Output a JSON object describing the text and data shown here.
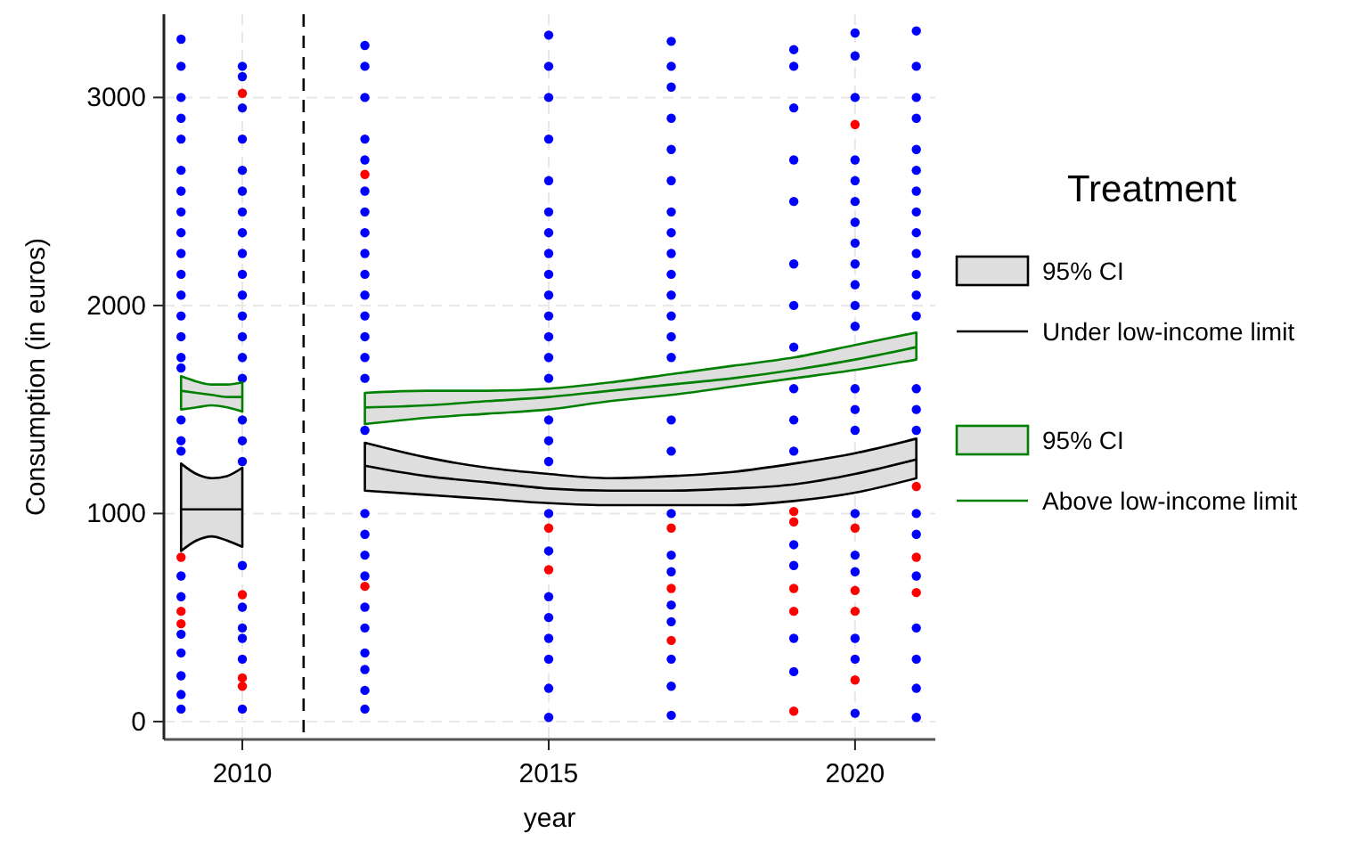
{
  "chart_data": {
    "type": "scatter",
    "xlabel": "year",
    "ylabel": "Consumption (in euros)",
    "legend_title": "Treatment",
    "legend": "right",
    "grid": true,
    "marker": "circle",
    "xlim": [
      2008.72,
      2021.31
    ],
    "ylim": [
      -86,
      3400
    ],
    "xticks": [
      2010,
      2015,
      2020
    ],
    "yticks": [
      0,
      1000,
      2000,
      3000
    ],
    "annotations": [
      "95% CI",
      "95% CI"
    ],
    "ref_lines": [
      {
        "axis": "x",
        "value": 2011,
        "color": "#000000",
        "line_style": "dashed"
      }
    ],
    "series": [
      {
        "color": "#0000ff",
        "x": [
          2009,
          2009,
          2009,
          2009,
          2009,
          2009,
          2009,
          2009,
          2009,
          2009,
          2009,
          2009,
          2009,
          2009,
          2009,
          2009,
          2009,
          2009,
          2009,
          2009,
          2009,
          2009,
          2009,
          2009,
          2009,
          2009,
          2010,
          2010,
          2010,
          2010,
          2010,
          2010,
          2010,
          2010,
          2010,
          2010,
          2010,
          2010,
          2010,
          2010,
          2010,
          2010,
          2010,
          2010,
          2010,
          2010,
          2010,
          2010,
          2010,
          2010,
          2012,
          2012,
          2012,
          2012,
          2012,
          2012,
          2012,
          2012,
          2012,
          2012,
          2012,
          2012,
          2012,
          2012,
          2012,
          2012,
          2012,
          2012,
          2012,
          2012,
          2012,
          2012,
          2012,
          2012,
          2012,
          2012,
          2015,
          2015,
          2015,
          2015,
          2015,
          2015,
          2015,
          2015,
          2015,
          2015,
          2015,
          2015,
          2015,
          2015,
          2015,
          2015,
          2015,
          2015,
          2015,
          2015,
          2015,
          2015,
          2015,
          2015,
          2015,
          2017,
          2017,
          2017,
          2017,
          2017,
          2017,
          2017,
          2017,
          2017,
          2017,
          2017,
          2017,
          2017,
          2017,
          2017,
          2017,
          2017,
          2017,
          2017,
          2017,
          2017,
          2017,
          2017,
          2017,
          2019,
          2019,
          2019,
          2019,
          2019,
          2019,
          2019,
          2019,
          2019,
          2019,
          2019,
          2019,
          2019,
          2019,
          2019,
          2020,
          2020,
          2020,
          2020,
          2020,
          2020,
          2020,
          2020,
          2020,
          2020,
          2020,
          2020,
          2020,
          2020,
          2020,
          2020,
          2020,
          2020,
          2020,
          2020,
          2020,
          2021,
          2021,
          2021,
          2021,
          2021,
          2021,
          2021,
          2021,
          2021,
          2021,
          2021,
          2021,
          2021,
          2021,
          2021,
          2021,
          2021,
          2021,
          2021,
          2021,
          2021,
          2021,
          2021
        ],
        "values": [
          60,
          130,
          220,
          330,
          420,
          600,
          700,
          1300,
          1350,
          1450,
          1700,
          1750,
          1850,
          1950,
          2050,
          2150,
          2250,
          2350,
          2450,
          2550,
          2650,
          2800,
          2900,
          3000,
          3150,
          3280,
          60,
          300,
          400,
          450,
          550,
          750,
          1250,
          1350,
          1450,
          1650,
          1750,
          1850,
          1950,
          2050,
          2150,
          2250,
          2350,
          2450,
          2550,
          2650,
          2800,
          2950,
          3100,
          3150,
          60,
          150,
          250,
          330,
          450,
          550,
          700,
          800,
          900,
          1000,
          1400,
          1650,
          1750,
          1850,
          1950,
          2050,
          2150,
          2250,
          2350,
          2450,
          2550,
          2700,
          2800,
          3000,
          3150,
          3250,
          20,
          160,
          300,
          400,
          500,
          600,
          820,
          1000,
          1250,
          1350,
          1450,
          1650,
          1750,
          1850,
          1950,
          2050,
          2150,
          2250,
          2350,
          2450,
          2600,
          2800,
          3000,
          3150,
          3300,
          30,
          170,
          300,
          480,
          560,
          720,
          800,
          1000,
          1300,
          1450,
          1750,
          1850,
          1950,
          2050,
          2150,
          2250,
          2350,
          2450,
          2600,
          2750,
          2900,
          3050,
          3150,
          3270,
          240,
          400,
          750,
          850,
          1300,
          1450,
          1600,
          1800,
          2000,
          2200,
          2500,
          2700,
          2950,
          3150,
          3230,
          40,
          300,
          400,
          720,
          800,
          1000,
          1400,
          1500,
          1600,
          1900,
          2000,
          2100,
          2200,
          2300,
          2400,
          2500,
          2600,
          2700,
          3000,
          3200,
          3310,
          20,
          160,
          300,
          450,
          700,
          900,
          1000,
          1400,
          1500,
          1600,
          1950,
          2050,
          2150,
          2250,
          2350,
          2450,
          2550,
          2650,
          2750,
          2900,
          3000,
          3150,
          3320
        ]
      },
      {
        "color": "#ff0000",
        "x": [
          2009,
          2009,
          2009,
          2010,
          2010,
          2010,
          2010,
          2012,
          2012,
          2015,
          2015,
          2017,
          2017,
          2017,
          2019,
          2019,
          2019,
          2019,
          2019,
          2020,
          2020,
          2020,
          2020,
          2020,
          2021,
          2021,
          2021
        ],
        "values": [
          530,
          470,
          790,
          210,
          170,
          610,
          3020,
          650,
          2630,
          730,
          930,
          640,
          930,
          390,
          50,
          530,
          640,
          960,
          1010,
          200,
          530,
          630,
          930,
          2870,
          620,
          790,
          1130
        ]
      },
      {
        "type": "line",
        "marker": "none",
        "name": "Under low-income limit",
        "color": "#000000",
        "x": [
          2009,
          2009.25,
          2009.5,
          2009.75,
          2010,
          2011,
          2012,
          2013,
          2014,
          2015,
          2016,
          2017,
          2018,
          2019,
          2020,
          2021
        ],
        "values": [
          1020,
          1020,
          1020,
          1020,
          1020,
          null,
          1230,
          1180,
          1150,
          1120,
          1110,
          1110,
          1120,
          1140,
          1190,
          1260
        ],
        "upper": [
          1240,
          1190,
          1170,
          1180,
          1220,
          null,
          1340,
          1270,
          1220,
          1190,
          1170,
          1180,
          1200,
          1240,
          1290,
          1360
        ],
        "lower": [
          820,
          870,
          890,
          870,
          840,
          null,
          1110,
          1090,
          1070,
          1050,
          1040,
          1040,
          1040,
          1060,
          1100,
          1170
        ]
      },
      {
        "type": "line",
        "marker": "none",
        "name": "Above low-income limit",
        "color": "#008000",
        "x": [
          2009,
          2009.25,
          2009.5,
          2009.75,
          2010,
          2011,
          2012,
          2013,
          2014,
          2015,
          2016,
          2017,
          2018,
          2019,
          2020,
          2021
        ],
        "values": [
          1590,
          1580,
          1570,
          1560,
          1560,
          null,
          1510,
          1520,
          1540,
          1560,
          1590,
          1620,
          1650,
          1690,
          1740,
          1800
        ],
        "upper": [
          1660,
          1635,
          1620,
          1620,
          1630,
          null,
          1580,
          1590,
          1590,
          1600,
          1630,
          1670,
          1710,
          1750,
          1810,
          1870
        ],
        "lower": [
          1500,
          1510,
          1520,
          1510,
          1490,
          null,
          1430,
          1460,
          1480,
          1500,
          1540,
          1570,
          1610,
          1650,
          1690,
          1740
        ]
      }
    ]
  }
}
